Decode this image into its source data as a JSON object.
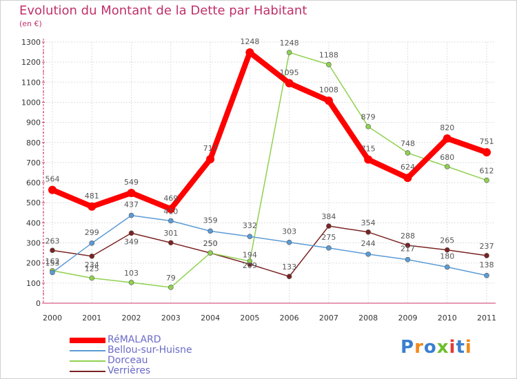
{
  "header": {
    "title": "Evolution du Montant de la Dette par Habitant",
    "subtitle": "(en €)"
  },
  "chart_data": {
    "type": "line",
    "title": "Evolution du Montant de la Dette par Habitant",
    "subtitle": "(en €)",
    "xlabel": "",
    "ylabel": "",
    "x": [
      "2000",
      "2001",
      "2002",
      "2003",
      "2004",
      "2005",
      "2006",
      "2007",
      "2008",
      "2009",
      "2010",
      "2011"
    ],
    "ylim": [
      0,
      1300
    ],
    "yticks": [
      0,
      100,
      200,
      300,
      400,
      500,
      600,
      700,
      800,
      900,
      1000,
      1100,
      1200,
      1300
    ],
    "grid": true,
    "legend_position": "bottom-left",
    "series": [
      {
        "name": "RéMALARD",
        "color": "#ff0000",
        "values": [
          564,
          481,
          549,
          469,
          717,
          1248,
          1095,
          1008,
          715,
          624,
          820,
          751
        ]
      },
      {
        "name": "Bellou-sur-Huisne",
        "color": "#5b9bd5",
        "values": [
          153,
          299,
          437,
          410,
          359,
          332,
          303,
          275,
          244,
          217,
          180,
          138
        ]
      },
      {
        "name": "Dorceau",
        "color": "#8fd14f",
        "values": [
          162,
          125,
          103,
          79,
          250,
          209,
          1248,
          1188,
          879,
          748,
          680,
          612
        ]
      },
      {
        "name": "Verrières",
        "color": "#7b2222",
        "values": [
          263,
          234,
          349,
          301,
          250,
          194,
          133,
          384,
          354,
          288,
          265,
          237
        ]
      }
    ]
  },
  "logo": {
    "letters": [
      "P",
      "r",
      "o",
      "x",
      "i",
      "t",
      "i"
    ],
    "colors": [
      "#3a7fd0",
      "#f08a1c",
      "#3a7fd0",
      "#6cbf2a",
      "#e23a3a",
      "#3a7fd0",
      "#f08a1c"
    ]
  }
}
